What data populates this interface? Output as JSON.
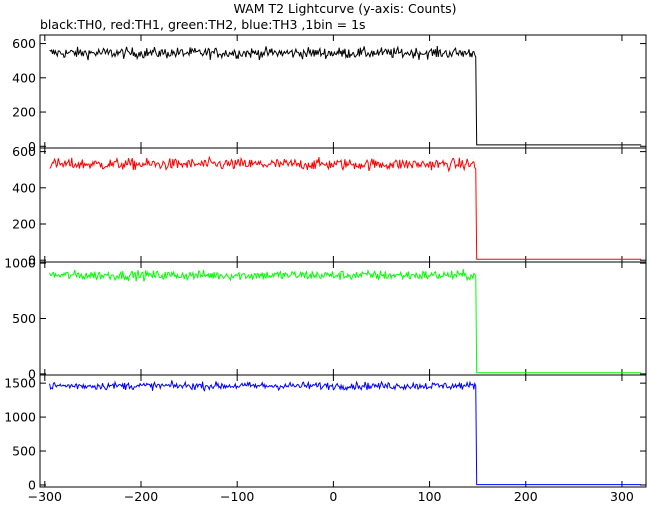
{
  "chart_data": {
    "type": "line",
    "title": "WAM T2 Lightcurve (y-axis: Counts)",
    "subtitle": "black:TH0, red:TH1, green:TH2, blue:TH3 ,1bin = 1s",
    "xlabel": "",
    "ylabel": "",
    "xlim": [
      -305,
      325
    ],
    "x_ticks": [
      -300,
      -200,
      -100,
      0,
      100,
      200,
      300
    ],
    "x_tick_labels": [
      "−300",
      "−200",
      "−100",
      "0",
      "100",
      "200",
      "300"
    ],
    "bin_seconds": 1,
    "grid": false,
    "legend": "subtitle",
    "series": [
      {
        "color": "#000000",
        "ylim": [
          -10,
          650
        ],
        "y_ticks": [
          0,
          200,
          400,
          600
        ],
        "y_tick_labels": [
          "0",
          "200",
          "400",
          "600"
        ],
        "x_start": -295,
        "x_drop": 148,
        "x_end": 320,
        "mean_before": 545,
        "noise": 16,
        "value_after": 8
      },
      {
        "color": "#ff0000",
        "ylim": [
          -10,
          620
        ],
        "y_ticks": [
          0,
          200,
          400,
          600
        ],
        "y_tick_labels": [
          "0",
          "200",
          "400",
          "600"
        ],
        "x_start": -295,
        "x_drop": 148,
        "x_end": 320,
        "mean_before": 530,
        "noise": 16,
        "value_after": 5
      },
      {
        "color": "#00ff00",
        "ylim": [
          -10,
          1010
        ],
        "y_ticks": [
          0,
          500,
          1000
        ],
        "y_tick_labels": [
          "0",
          "500",
          "1000"
        ],
        "x_start": -295,
        "x_drop": 148,
        "x_end": 320,
        "mean_before": 890,
        "noise": 22,
        "value_after": 10
      },
      {
        "color": "#0000ff",
        "ylim": [
          -30,
          1620
        ],
        "y_ticks": [
          0,
          500,
          1000,
          1500
        ],
        "y_tick_labels": [
          "0",
          "500",
          "1000",
          "1500"
        ],
        "x_start": -295,
        "x_drop": 148,
        "x_end": 320,
        "mean_before": 1460,
        "noise": 28,
        "value_after": 5
      }
    ]
  }
}
